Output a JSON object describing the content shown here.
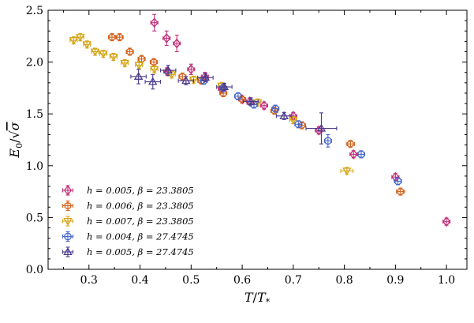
{
  "chart_data": {
    "type": "scatter",
    "xlabel": "T/T_*",
    "ylabel": "E_0/√σ",
    "xlim": [
      0.22,
      1.04
    ],
    "ylim": [
      0.0,
      2.5
    ],
    "xticks": [
      0.3,
      0.4,
      0.5,
      0.6,
      0.7,
      0.8,
      0.9,
      1.0
    ],
    "xtick_labels": [
      "0.3",
      "0.4",
      "0.5",
      "0.6",
      "0.7",
      "0.8",
      "0.9",
      "1.0"
    ],
    "yticks": [
      0.0,
      0.5,
      1.0,
      1.5,
      2.0,
      2.5
    ],
    "ytick_labels": [
      "0.0",
      "0.5",
      "1.0",
      "1.5",
      "2.0",
      "2.5"
    ],
    "grid": false,
    "legend_position": "lower-left",
    "series": [
      {
        "name": "h = 0.005, β = 23.3805",
        "color": "#c0307a",
        "marker": "diamond",
        "points": [
          {
            "x": 0.428,
            "y": 2.38,
            "xerr": 0.004,
            "yerr": 0.08
          },
          {
            "x": 0.452,
            "y": 2.23,
            "xerr": 0.004,
            "yerr": 0.07
          },
          {
            "x": 0.472,
            "y": 2.18,
            "xerr": 0.004,
            "yerr": 0.08
          },
          {
            "x": 0.453,
            "y": 1.91,
            "xerr": 0.004,
            "yerr": 0.03
          },
          {
            "x": 0.5,
            "y": 1.93,
            "xerr": 0.004,
            "yerr": 0.05
          },
          {
            "x": 0.527,
            "y": 1.86,
            "xerr": 0.004,
            "yerr": 0.04
          },
          {
            "x": 0.56,
            "y": 1.74,
            "xerr": 0.004,
            "yerr": 0.03
          },
          {
            "x": 0.6,
            "y": 1.64,
            "xerr": 0.004,
            "yerr": 0.02
          },
          {
            "x": 0.615,
            "y": 1.62,
            "xerr": 0.004,
            "yerr": 0.02
          },
          {
            "x": 0.643,
            "y": 1.58,
            "xerr": 0.004,
            "yerr": 0.02
          },
          {
            "x": 0.7,
            "y": 1.48,
            "xerr": 0.004,
            "yerr": 0.02
          },
          {
            "x": 0.75,
            "y": 1.34,
            "xerr": 0.004,
            "yerr": 0.02
          },
          {
            "x": 0.818,
            "y": 1.11,
            "xerr": 0.004,
            "yerr": 0.02
          },
          {
            "x": 0.9,
            "y": 0.89,
            "xerr": 0.004,
            "yerr": 0.02
          },
          {
            "x": 1.0,
            "y": 0.46,
            "xerr": 0.004,
            "yerr": 0.02
          }
        ]
      },
      {
        "name": "h = 0.006, β = 23.3805",
        "color": "#d4621c",
        "marker": "hexagon",
        "points": [
          {
            "x": 0.345,
            "y": 2.24,
            "xerr": 0.004,
            "yerr": 0.03
          },
          {
            "x": 0.36,
            "y": 2.24,
            "xerr": 0.004,
            "yerr": 0.03
          },
          {
            "x": 0.38,
            "y": 2.1,
            "xerr": 0.004,
            "yerr": 0.03
          },
          {
            "x": 0.403,
            "y": 2.03,
            "xerr": 0.004,
            "yerr": 0.03
          },
          {
            "x": 0.427,
            "y": 2.0,
            "xerr": 0.004,
            "yerr": 0.03
          },
          {
            "x": 0.483,
            "y": 1.86,
            "xerr": 0.004,
            "yerr": 0.02
          },
          {
            "x": 0.52,
            "y": 1.82,
            "xerr": 0.004,
            "yerr": 0.02
          },
          {
            "x": 0.563,
            "y": 1.7,
            "xerr": 0.004,
            "yerr": 0.02
          },
          {
            "x": 0.6,
            "y": 1.64,
            "xerr": 0.004,
            "yerr": 0.02
          },
          {
            "x": 0.663,
            "y": 1.53,
            "xerr": 0.004,
            "yerr": 0.02
          },
          {
            "x": 0.717,
            "y": 1.39,
            "xerr": 0.004,
            "yerr": 0.02
          },
          {
            "x": 0.812,
            "y": 1.21,
            "xerr": 0.008,
            "yerr": 0.02
          },
          {
            "x": 0.91,
            "y": 0.75,
            "xerr": 0.008,
            "yerr": 0.02
          }
        ]
      },
      {
        "name": "h = 0.007, β = 23.3805",
        "color": "#d6a516",
        "marker": "triangle-down",
        "points": [
          {
            "x": 0.27,
            "y": 2.21,
            "xerr": 0.005,
            "yerr": 0.03
          },
          {
            "x": 0.283,
            "y": 2.24,
            "xerr": 0.005,
            "yerr": 0.03
          },
          {
            "x": 0.296,
            "y": 2.17,
            "xerr": 0.005,
            "yerr": 0.03
          },
          {
            "x": 0.312,
            "y": 2.1,
            "xerr": 0.005,
            "yerr": 0.03
          },
          {
            "x": 0.328,
            "y": 2.08,
            "xerr": 0.005,
            "yerr": 0.03
          },
          {
            "x": 0.348,
            "y": 2.05,
            "xerr": 0.005,
            "yerr": 0.03
          },
          {
            "x": 0.37,
            "y": 1.99,
            "xerr": 0.005,
            "yerr": 0.03
          },
          {
            "x": 0.398,
            "y": 1.97,
            "xerr": 0.005,
            "yerr": 0.03
          },
          {
            "x": 0.428,
            "y": 1.93,
            "xerr": 0.005,
            "yerr": 0.03
          },
          {
            "x": 0.462,
            "y": 1.88,
            "xerr": 0.005,
            "yerr": 0.02
          },
          {
            "x": 0.505,
            "y": 1.83,
            "xerr": 0.005,
            "yerr": 0.02
          },
          {
            "x": 0.56,
            "y": 1.77,
            "xerr": 0.005,
            "yerr": 0.02
          },
          {
            "x": 0.63,
            "y": 1.61,
            "xerr": 0.005,
            "yerr": 0.02
          },
          {
            "x": 0.7,
            "y": 1.44,
            "xerr": 0.005,
            "yerr": 0.02
          },
          {
            "x": 0.805,
            "y": 0.95,
            "xerr": 0.012,
            "yerr": 0.02
          }
        ]
      },
      {
        "name": "h = 0.004, β = 27.4745",
        "color": "#4466cc",
        "marker": "circle",
        "points": [
          {
            "x": 0.525,
            "y": 1.82,
            "xerr": 0.004,
            "yerr": 0.02
          },
          {
            "x": 0.563,
            "y": 1.75,
            "xerr": 0.004,
            "yerr": 0.02
          },
          {
            "x": 0.592,
            "y": 1.67,
            "xerr": 0.004,
            "yerr": 0.02
          },
          {
            "x": 0.623,
            "y": 1.59,
            "xerr": 0.004,
            "yerr": 0.02
          },
          {
            "x": 0.665,
            "y": 1.55,
            "xerr": 0.004,
            "yerr": 0.02
          },
          {
            "x": 0.71,
            "y": 1.4,
            "xerr": 0.004,
            "yerr": 0.02
          },
          {
            "x": 0.768,
            "y": 1.24,
            "xerr": 0.004,
            "yerr": 0.06
          },
          {
            "x": 0.833,
            "y": 1.11,
            "xerr": 0.004,
            "yerr": 0.03
          },
          {
            "x": 0.905,
            "y": 0.85,
            "xerr": 0.004,
            "yerr": 0.02
          }
        ]
      },
      {
        "name": "h = 0.005, β = 27.4745",
        "color": "#4b3a8c",
        "marker": "triangle-up",
        "points": [
          {
            "x": 0.397,
            "y": 1.86,
            "xerr": 0.015,
            "yerr": 0.07
          },
          {
            "x": 0.425,
            "y": 1.81,
            "xerr": 0.015,
            "yerr": 0.07
          },
          {
            "x": 0.455,
            "y": 1.92,
            "xerr": 0.015,
            "yerr": 0.05
          },
          {
            "x": 0.49,
            "y": 1.82,
            "xerr": 0.015,
            "yerr": 0.04
          },
          {
            "x": 0.528,
            "y": 1.85,
            "xerr": 0.015,
            "yerr": 0.04
          },
          {
            "x": 0.565,
            "y": 1.76,
            "xerr": 0.015,
            "yerr": 0.03
          },
          {
            "x": 0.617,
            "y": 1.62,
            "xerr": 0.015,
            "yerr": 0.03
          },
          {
            "x": 0.682,
            "y": 1.48,
            "xerr": 0.015,
            "yerr": 0.03
          },
          {
            "x": 0.755,
            "y": 1.36,
            "xerr": 0.03,
            "yerr": 0.15
          }
        ]
      }
    ]
  }
}
